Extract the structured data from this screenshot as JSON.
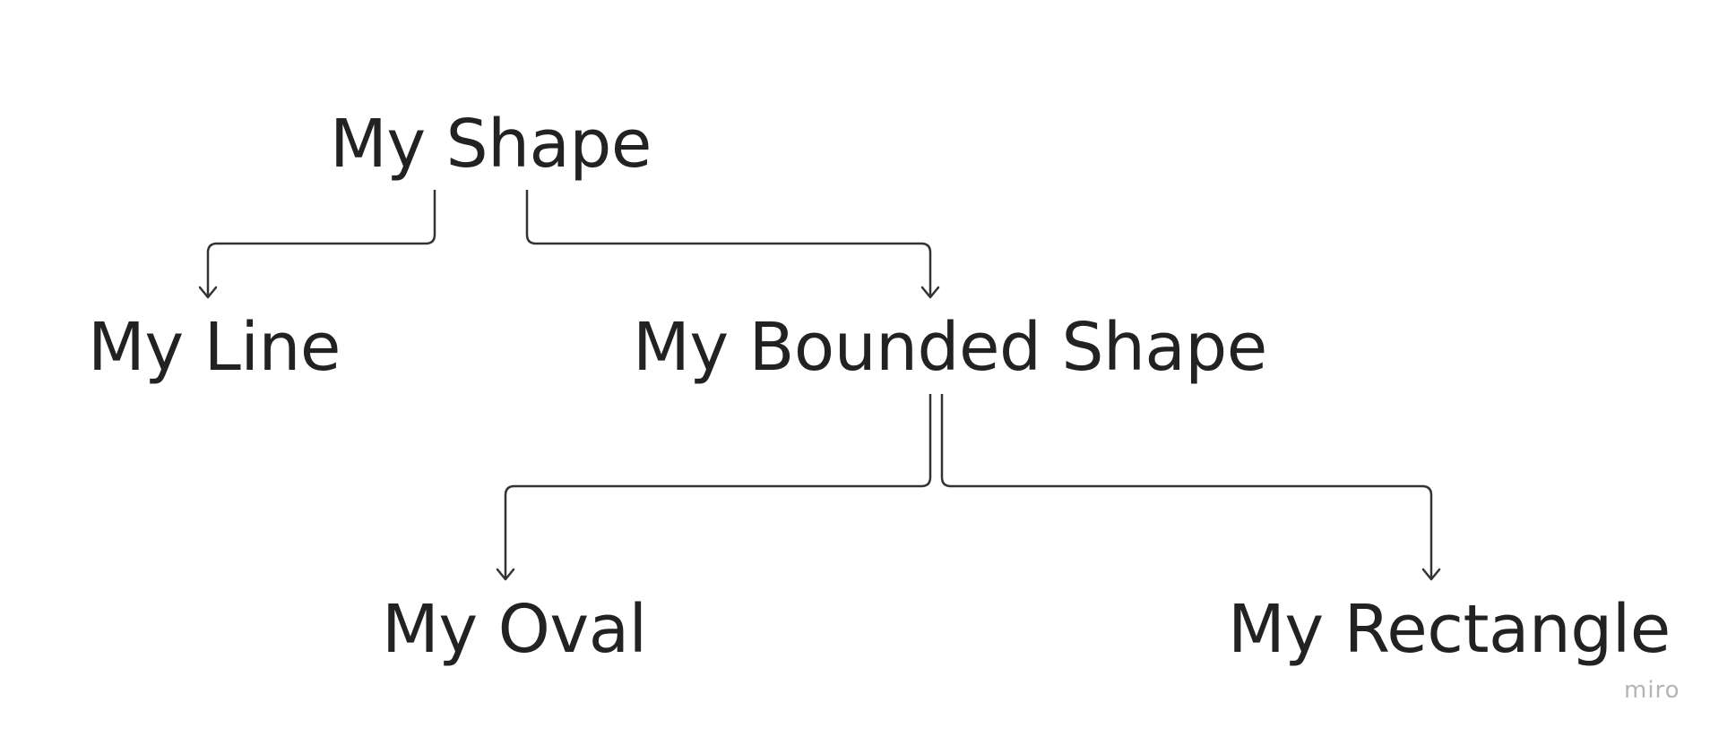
{
  "nodes": {
    "shape": "My Shape",
    "line": "My Line",
    "bounded_shape": "My Bounded Shape",
    "oval": "My Oval",
    "rectangle": "My Rectangle"
  },
  "edges": [
    {
      "from": "My Shape",
      "to": "My Line"
    },
    {
      "from": "My Shape",
      "to": "My Bounded Shape"
    },
    {
      "from": "My Bounded Shape",
      "to": "My Oval"
    },
    {
      "from": "My Bounded Shape",
      "to": "My Rectangle"
    }
  ],
  "watermark": "miro",
  "colors": {
    "text": "#222222",
    "edge": "#333333",
    "watermark": "#b5b5b5",
    "background": "#ffffff"
  }
}
